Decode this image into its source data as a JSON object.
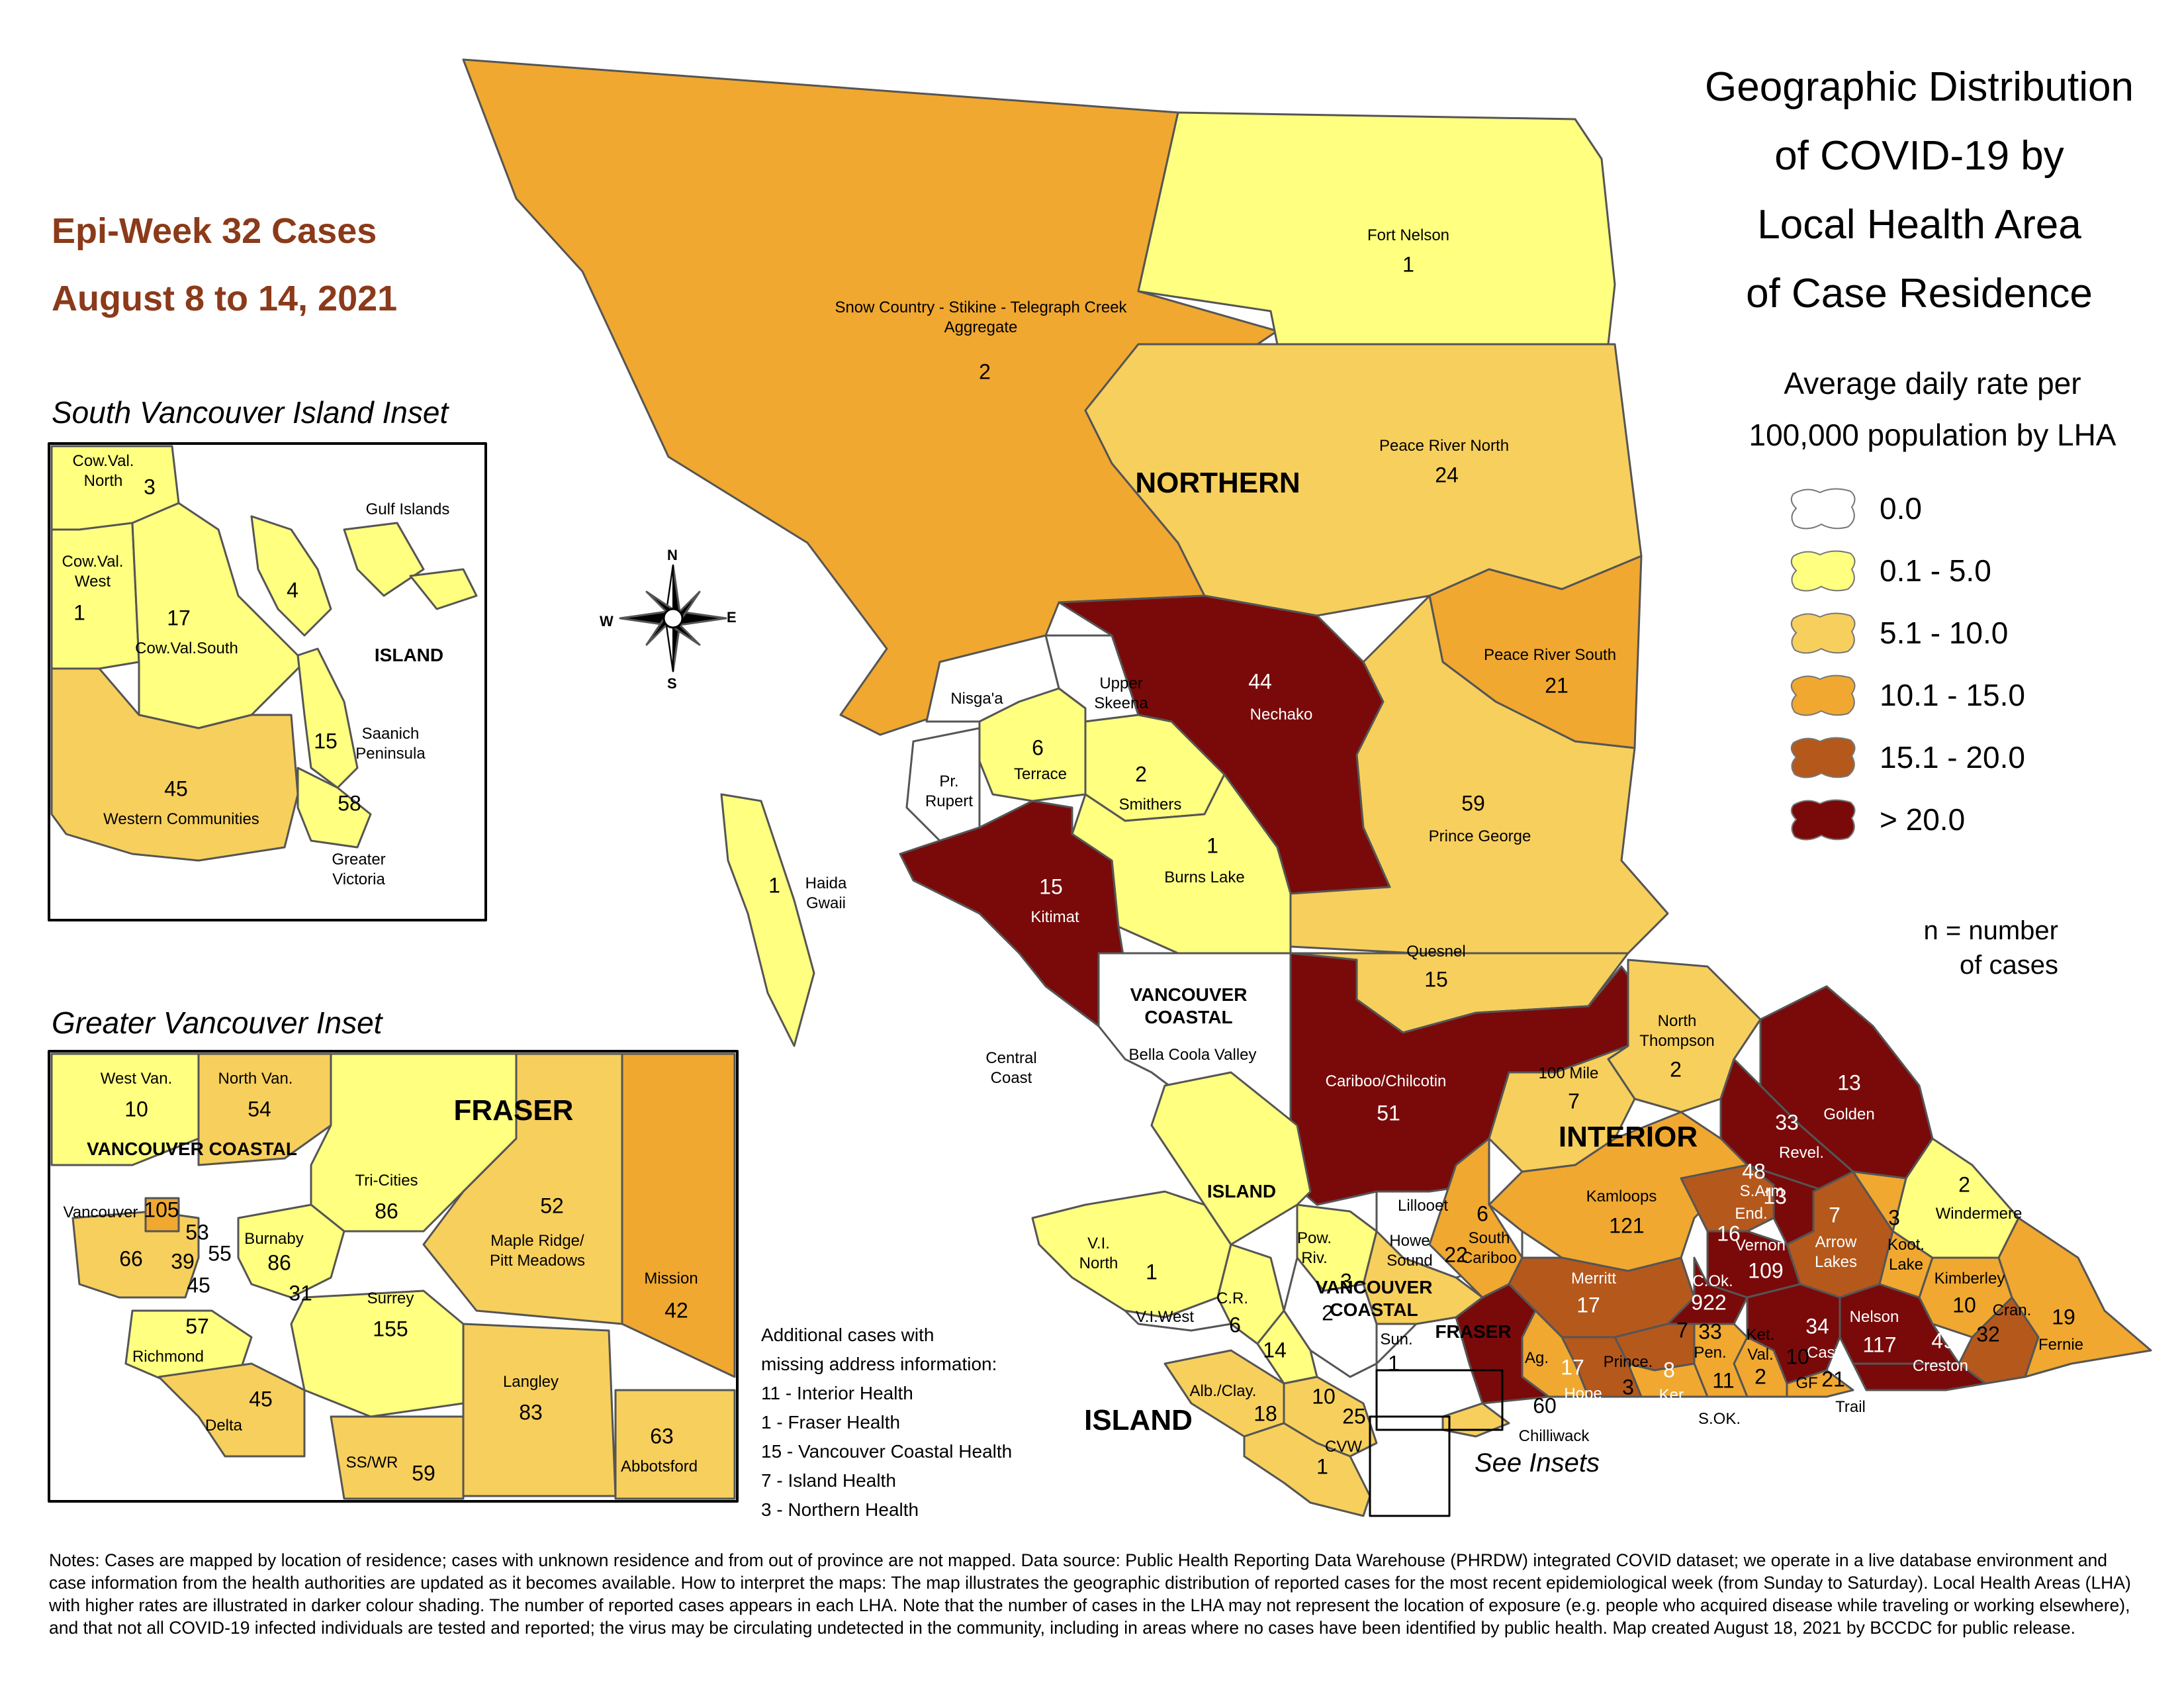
{
  "title": {
    "line1": "Geographic Distribution",
    "line2": "of COVID-19 by",
    "line3": "Local Health Area",
    "line4": "of Case Residence"
  },
  "epi_week": {
    "line1": "Epi-Week 32 Cases",
    "line2": "August 8 to 14, 2021"
  },
  "legend": {
    "title_line1": "Average daily rate per",
    "title_line2": "100,000 population by LHA",
    "items": [
      {
        "label": "0.0",
        "color": "#ffffff"
      },
      {
        "label": "0.1 - 5.0",
        "color": "#ffff80"
      },
      {
        "label": "5.1 - 10.0",
        "color": "#f7cf5c"
      },
      {
        "label": "10.1 - 15.0",
        "color": "#f0a830"
      },
      {
        "label": "15.1 - 20.0",
        "color": "#b5581c"
      },
      {
        "label": "> 20.0",
        "color": "#7a0a0a"
      }
    ],
    "n_note_line1": "n = number",
    "n_note_line2": "of cases"
  },
  "compass": {
    "n": "N",
    "s": "S",
    "e": "E",
    "w": "W"
  },
  "insets": {
    "south_vi": "South Vancouver Island Inset",
    "greater_van": "Greater Vancouver Inset",
    "see_insets": "See Insets"
  },
  "regions": {
    "northern": "NORTHERN",
    "interior": "INTERIOR",
    "island": "ISLAND",
    "island_small": "ISLAND",
    "island_inset": "ISLAND",
    "fraser": "FRASER",
    "fraser_small": "FRASER",
    "vc_line1": "VANCOUVER",
    "vc_line2": "COASTAL",
    "vc2_line1": "VANCOUVER",
    "vc2_line2": "COASTAL",
    "vc_inset": "VANCOUVER COASTAL"
  },
  "lha": {
    "fort_nelson": {
      "name": "Fort Nelson",
      "n": "1"
    },
    "snow_country": {
      "name1": "Snow Country - Stikine - Telegraph Creek",
      "name2": "Aggregate",
      "n": "2"
    },
    "peace_north": {
      "name": "Peace River North",
      "n": "24"
    },
    "peace_south": {
      "name": "Peace River South",
      "n": "21"
    },
    "nechako": {
      "name": "Nechako",
      "n": "44"
    },
    "upper_skeena": {
      "name1": "Upper",
      "name2": "Skeena"
    },
    "nisgaa": {
      "name": "Nisga'a"
    },
    "terrace": {
      "name": "Terrace",
      "n": "6"
    },
    "smithers": {
      "name": "Smithers",
      "n": "2"
    },
    "pr_rupert": {
      "name1": "Pr.",
      "name2": "Rupert"
    },
    "prince_george": {
      "name": "Prince George",
      "n": "59"
    },
    "burns_lake": {
      "name": "Burns Lake",
      "n": "1"
    },
    "kitimat": {
      "name": "Kitimat",
      "n": "15"
    },
    "haida": {
      "name1": "Haida",
      "name2": "Gwaii",
      "n": "1"
    },
    "quesnel": {
      "name": "Quesnel",
      "n": "15"
    },
    "central_coast": {
      "name1": "Central",
      "name2": "Coast"
    },
    "bella_coola": {
      "name": "Bella Coola Valley"
    },
    "cariboo": {
      "name": "Cariboo/Chilcotin",
      "n": "51"
    },
    "north_thompson": {
      "name1": "North",
      "name2": "Thompson",
      "n": "2"
    },
    "mile100": {
      "name": "100 Mile",
      "n": "7"
    },
    "golden": {
      "name": "Golden",
      "n": "13"
    },
    "revel": {
      "name": "Revel.",
      "n": "33"
    },
    "lillooet": {
      "name": "Lillooet"
    },
    "kamloops": {
      "name": "Kamloops",
      "n": "121"
    },
    "sarm": {
      "name": "S.Arm",
      "n": "48"
    },
    "end": {
      "name": "End.",
      "n": "13"
    },
    "windermere": {
      "name": "Windermere",
      "n": "2"
    },
    "south_cariboo": {
      "name1": "South",
      "name2": "Cariboo",
      "n": "6"
    },
    "vernon": {
      "name": "Vernon",
      "n": "109",
      "n2": "16"
    },
    "arrow": {
      "name1": "Arrow",
      "name2": "Lakes",
      "n": "7"
    },
    "koot_lake": {
      "name1": "Koot.",
      "name2": "Lake",
      "n": "3"
    },
    "merritt": {
      "name": "Merritt",
      "n": "17"
    },
    "cok": {
      "name": "C.Ok.",
      "n": "922"
    },
    "kimberley": {
      "name": "Kimberley",
      "n": "10"
    },
    "cran": {
      "name": "Cran.",
      "n": "32"
    },
    "fernie": {
      "name": "Fernie",
      "n": "19"
    },
    "nelson": {
      "name": "Nelson",
      "n": "117"
    },
    "cast": {
      "name": "Cast.",
      "n": "34"
    },
    "creston": {
      "name": "Creston",
      "n": "49"
    },
    "pen": {
      "name": "Pen.",
      "n": "33",
      "n2": "7"
    },
    "ket_val": {
      "name1": "Ket.",
      "name2": "Val.",
      "n": "2"
    },
    "gf": {
      "name": "GF",
      "n": "10",
      "n2": "21"
    },
    "trail": {
      "name": "Trail"
    },
    "sok": {
      "name": "S.OK.",
      "n": "11"
    },
    "ker": {
      "name": "Ker.",
      "n": "8"
    },
    "prince": {
      "name": "Prince.",
      "n": "3"
    },
    "hope": {
      "name": "Hope",
      "n": "17"
    },
    "chilliwack": {
      "name": "Chilliwack",
      "n": "60"
    },
    "ag": {
      "name": "Ag."
    },
    "howe": {
      "name1": "Howe",
      "name2": "Sound",
      "n": "22"
    },
    "pow_riv": {
      "name1": "Pow.",
      "name2": "Riv.",
      "n": "3"
    },
    "sun": {
      "name": "Sun.",
      "n": "1"
    },
    "vc_num": "2",
    "vi_north": {
      "name1": "V.I.",
      "name2": "North",
      "n": "1"
    },
    "vi_west": {
      "name": "V.I.West"
    },
    "cr": {
      "name": "C.R.",
      "n": "6"
    },
    "n14": "14",
    "alb": {
      "name": "Alb./Clay.",
      "n": "18"
    },
    "n10": "10",
    "n25": "25",
    "cvw": {
      "name": "CVW",
      "n": "1"
    }
  },
  "south_vi_inset": {
    "cow_val_north": {
      "name1": "Cow.Val.",
      "name2": "North",
      "n": "3"
    },
    "gulf": {
      "name": "Gulf Islands",
      "n": "4"
    },
    "cow_val_west": {
      "name1": "Cow.Val.",
      "name2": "West",
      "n": "1"
    },
    "cow_val_south": {
      "name": "Cow.Val.South",
      "n": "17"
    },
    "saanich": {
      "name1": "Saanich",
      "name2": "Peninsula",
      "n": "15"
    },
    "western": {
      "name": "Western Communities",
      "n": "45"
    },
    "victoria": {
      "name1": "Greater",
      "name2": "Victoria",
      "n": "58"
    }
  },
  "gv_inset": {
    "west_van": {
      "name": "West Van.",
      "n": "10"
    },
    "north_van": {
      "name": "North Van.",
      "n": "54"
    },
    "tri_cities": {
      "name": "Tri-Cities",
      "n": "86"
    },
    "maple": {
      "name1": "Maple Ridge/",
      "name2": "Pitt Meadows",
      "n": "52"
    },
    "mission": {
      "name": "Mission",
      "n": "42"
    },
    "vancouver": {
      "name": "Vancouver",
      "n": "105"
    },
    "v66": "66",
    "v53": "53",
    "v39": "39",
    "v55": "55",
    "v45": "45",
    "burnaby": {
      "name": "Burnaby",
      "n": "86"
    },
    "n31": "31",
    "richmond": {
      "name": "Richmond",
      "n": "57"
    },
    "surrey": {
      "name": "Surrey",
      "n": "155"
    },
    "langley": {
      "name": "Langley",
      "n": "83"
    },
    "delta": {
      "name": "Delta",
      "n": "45"
    },
    "sswr": {
      "name": "SS/WR",
      "n": "59"
    },
    "abbotsford": {
      "name": "Abbotsford",
      "n": "63"
    }
  },
  "additional": {
    "line1": "Additional cases with",
    "line2": "missing address information:",
    "line3": "11 - Interior Health",
    "line4": "1 - Fraser Health",
    "line5": "15 - Vancouver Coastal Health",
    "line6": "7 - Island Health",
    "line7": "3 - Northern Health"
  },
  "notes": "Notes: Cases are mapped by location of residence; cases with unknown residence and from out of province are not mapped. Data source: Public Health Reporting Data Warehouse (PHRDW) integrated COVID dataset; we operate in a live database environment and case information from the health authorities are updated as it becomes available. How to interpret the maps: The map illustrates the geographic distribution of reported cases for the most recent epidemiological week (from Sunday to Saturday). Local Health Areas (LHA) with higher rates are illustrated in darker colour shading. The number of reported cases appears in each LHA. Note that the number of cases in the LHA may not represent the location of exposure (e.g. people who acquired disease while traveling or working elsewhere), and that not all COVID-19 infected individuals are tested and reported; the virus may be circulating undetected in the community, including in areas where no cases have been identified by public health. Map created August 18, 2021 by BCCDC for public release."
}
